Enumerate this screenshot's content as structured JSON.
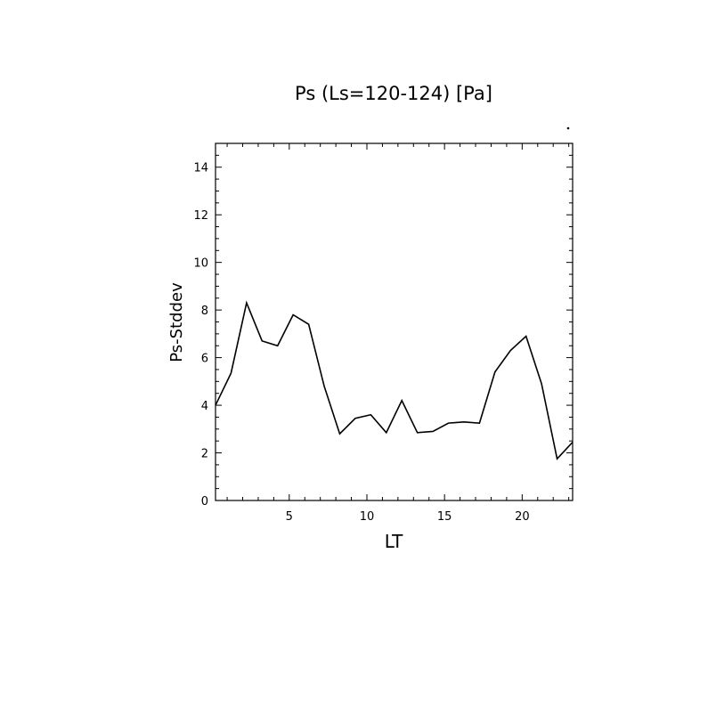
{
  "chart_data": {
    "type": "line",
    "title": "Ps (Ls=120-124) [Pa]",
    "xlabel": "LT",
    "ylabel": "Ps-Stddev",
    "xlim": [
      0.25,
      23.25
    ],
    "ylim": [
      0,
      15
    ],
    "xticks": [
      5,
      10,
      15,
      20
    ],
    "xtick_labels": [
      "5",
      "10",
      "15",
      "20"
    ],
    "yticks": [
      0,
      2,
      4,
      6,
      8,
      10,
      12,
      14
    ],
    "ytick_labels": [
      "0",
      "2",
      "4",
      "6",
      "8",
      "10",
      "12",
      "14"
    ],
    "grid": false,
    "legend": "none",
    "series": [
      {
        "x": [
          0.25,
          1.25,
          2.25,
          3.25,
          4.25,
          5.25,
          6.25,
          7.25,
          8.25,
          9.25,
          10.25,
          11.25,
          12.25,
          13.25,
          14.25,
          15.25,
          16.25,
          17.25,
          18.25,
          19.25,
          20.25,
          21.25,
          22.25,
          23.25
        ],
        "values": [
          4.0,
          5.35,
          8.3,
          6.7,
          6.5,
          7.8,
          7.4,
          4.8,
          2.8,
          3.45,
          3.6,
          2.85,
          4.2,
          2.85,
          2.9,
          3.25,
          3.3,
          3.25,
          5.4,
          6.3,
          6.9,
          4.9,
          1.75,
          2.45
        ]
      }
    ]
  }
}
